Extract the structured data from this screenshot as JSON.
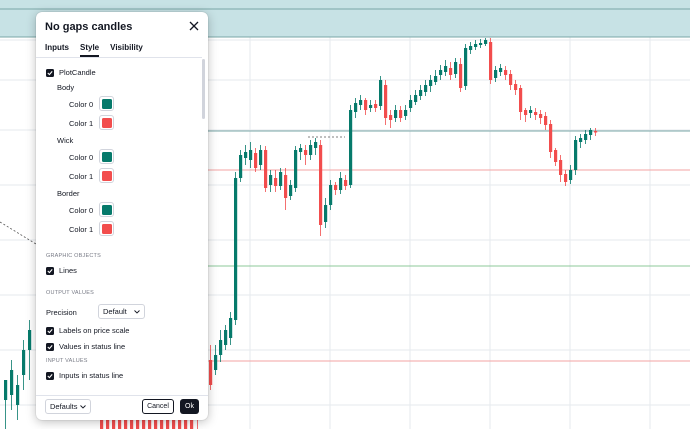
{
  "dialog": {
    "title": "No gaps candles",
    "tabs": [
      "Inputs",
      "Style",
      "Visibility"
    ],
    "active_tab": "Style",
    "plot_candle_label": "PlotCandle",
    "body_label": "Body",
    "wick_label": "Wick",
    "border_label": "Border",
    "color0_label": "Color 0",
    "color1_label": "Color 1",
    "color0": "#067a6b",
    "color1": "#f24d4d",
    "graphic_objects_header": "GRAPHIC OBJECTS",
    "lines_label": "Lines",
    "output_values_header": "OUTPUT VALUES",
    "precision_label": "Precision",
    "precision_value": "Default",
    "labels_on_price_scale": "Labels on price scale",
    "values_in_status_line": "Values in status line",
    "input_values_header": "INPUT VALUES",
    "inputs_in_status_line": "Inputs in status line",
    "defaults_label": "Defaults",
    "cancel_label": "Cancel",
    "ok_label": "Ok"
  },
  "chart": {
    "up_color": "#067a6b",
    "down_color": "#f24d4d",
    "band_color": "#c7e2e5",
    "gridline_color": "#e6eaee",
    "blue_line_color": "#7aa7a7",
    "red_line_color": "#f3a3a3",
    "green_line_color": "#8cc89a"
  }
}
